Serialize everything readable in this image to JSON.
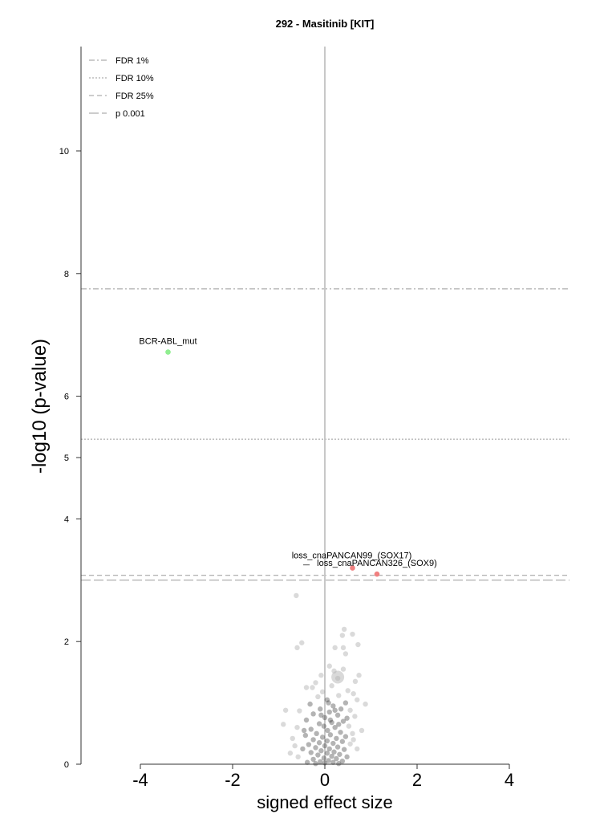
{
  "chart_data": {
    "type": "scatter",
    "title": "292 - Masitinib [KIT]",
    "xlabel": "signed effect size",
    "ylabel": "-log10 (p-value)",
    "xlim": [
      -5.3,
      5.3
    ],
    "ylim": [
      0,
      11.7
    ],
    "x_ticks": [
      -4,
      -2,
      0,
      2,
      4
    ],
    "x_tick_labels": [
      "-4",
      "-2",
      "0",
      "2",
      "4"
    ],
    "y_ticks": [
      0,
      2,
      4,
      5,
      6,
      8,
      10
    ],
    "y_tick_labels": [
      "0",
      "2",
      "4",
      "5",
      "6",
      "8",
      "10"
    ],
    "thresholds": [
      {
        "name": "FDR 1%",
        "y": 7.75,
        "dash": "dashdot",
        "color": "#9a9a9a"
      },
      {
        "name": "FDR 10%",
        "y": 5.3,
        "dash": "dotted",
        "color": "#9a9a9a"
      },
      {
        "name": "FDR 25%",
        "y": 3.08,
        "dash": "dashed",
        "color": "#9a9a9a"
      },
      {
        "name": "p 0.001",
        "y": 3.0,
        "dash": "longdash",
        "color": "#9a9a9a"
      }
    ],
    "legend_position": "top-left",
    "grid": false,
    "highlighted": [
      {
        "label": "BCR-ABL_mut",
        "x": -3.4,
        "y": 6.72,
        "color": "#90ee90"
      },
      {
        "label": "loss_cnaPANCAN99_(SOX17)",
        "x": 0.6,
        "y": 3.2,
        "color": "#f08080"
      },
      {
        "label": "loss_cnaPANCAN326_(SOX9)",
        "x": 1.13,
        "y": 3.1,
        "color": "#f08080"
      }
    ],
    "background_points": [
      {
        "x": -0.62,
        "y": 2.75
      },
      {
        "x": 0.42,
        "y": 2.2
      },
      {
        "x": 0.6,
        "y": 2.12
      },
      {
        "x": 0.38,
        "y": 2.1
      },
      {
        "x": -0.5,
        "y": 1.98
      },
      {
        "x": -0.6,
        "y": 1.9
      },
      {
        "x": 0.22,
        "y": 1.9
      },
      {
        "x": 0.4,
        "y": 1.9
      },
      {
        "x": 0.72,
        "y": 1.95
      },
      {
        "x": 0.45,
        "y": 1.8
      },
      {
        "x": 0.1,
        "y": 1.6
      },
      {
        "x": 0.2,
        "y": 1.52
      },
      {
        "x": 0.4,
        "y": 1.55
      },
      {
        "x": -0.08,
        "y": 1.45
      },
      {
        "x": 0.28,
        "y": 1.4
      },
      {
        "x": 0.74,
        "y": 1.45
      },
      {
        "x": 0.66,
        "y": 1.35
      },
      {
        "x": -0.2,
        "y": 1.33
      },
      {
        "x": -0.4,
        "y": 1.25
      },
      {
        "x": -0.27,
        "y": 1.25
      },
      {
        "x": 0.15,
        "y": 1.28
      },
      {
        "x": 0.5,
        "y": 1.2
      },
      {
        "x": -0.05,
        "y": 1.18
      },
      {
        "x": 0.62,
        "y": 1.15
      },
      {
        "x": 0.3,
        "y": 1.12
      },
      {
        "x": -0.15,
        "y": 1.1
      },
      {
        "x": 0.05,
        "y": 1.05
      },
      {
        "x": 0.7,
        "y": 1.05
      },
      {
        "x": 0.45,
        "y": 1.0
      },
      {
        "x": 0.88,
        "y": 0.98
      },
      {
        "x": -0.32,
        "y": 0.98
      },
      {
        "x": 0.18,
        "y": 0.95
      },
      {
        "x": -0.1,
        "y": 0.9
      },
      {
        "x": 0.35,
        "y": 0.9
      },
      {
        "x": 0.55,
        "y": 0.88
      },
      {
        "x": -0.85,
        "y": 0.88
      },
      {
        "x": -0.55,
        "y": 0.87
      },
      {
        "x": 0.1,
        "y": 0.85
      },
      {
        "x": -0.25,
        "y": 0.82
      },
      {
        "x": 0.28,
        "y": 0.8
      },
      {
        "x": 0.65,
        "y": 0.78
      },
      {
        "x": 0.0,
        "y": 0.76
      },
      {
        "x": -0.4,
        "y": 0.72
      },
      {
        "x": 0.4,
        "y": 0.7
      },
      {
        "x": 0.15,
        "y": 0.68
      },
      {
        "x": -0.12,
        "y": 0.66
      },
      {
        "x": 0.52,
        "y": 0.62
      },
      {
        "x": -0.6,
        "y": 0.6
      },
      {
        "x": 0.22,
        "y": 0.6
      },
      {
        "x": -0.3,
        "y": 0.57
      },
      {
        "x": 0.06,
        "y": 0.55
      },
      {
        "x": 0.34,
        "y": 0.52
      },
      {
        "x": -0.18,
        "y": 0.5
      },
      {
        "x": 0.6,
        "y": 0.5
      },
      {
        "x": 0.12,
        "y": 0.48
      },
      {
        "x": -0.42,
        "y": 0.47
      },
      {
        "x": 0.45,
        "y": 0.45
      },
      {
        "x": -0.05,
        "y": 0.44
      },
      {
        "x": 0.25,
        "y": 0.42
      },
      {
        "x": -0.7,
        "y": 0.42
      },
      {
        "x": -0.25,
        "y": 0.4
      },
      {
        "x": 0.05,
        "y": 0.38
      },
      {
        "x": 0.38,
        "y": 0.37
      },
      {
        "x": -0.12,
        "y": 0.35
      },
      {
        "x": 0.18,
        "y": 0.34
      },
      {
        "x": 0.55,
        "y": 0.33
      },
      {
        "x": -0.35,
        "y": 0.32
      },
      {
        "x": 0.0,
        "y": 0.3
      },
      {
        "x": 0.28,
        "y": 0.28
      },
      {
        "x": -0.2,
        "y": 0.27
      },
      {
        "x": 0.1,
        "y": 0.25
      },
      {
        "x": -0.48,
        "y": 0.25
      },
      {
        "x": 0.42,
        "y": 0.24
      },
      {
        "x": -0.08,
        "y": 0.22
      },
      {
        "x": 0.2,
        "y": 0.2
      },
      {
        "x": -0.3,
        "y": 0.19
      },
      {
        "x": 0.05,
        "y": 0.18
      },
      {
        "x": 0.32,
        "y": 0.16
      },
      {
        "x": -0.15,
        "y": 0.15
      },
      {
        "x": 0.15,
        "y": 0.13
      },
      {
        "x": -0.58,
        "y": 0.12
      },
      {
        "x": 0.48,
        "y": 0.12
      },
      {
        "x": -0.02,
        "y": 0.1
      },
      {
        "x": 0.25,
        "y": 0.09
      },
      {
        "x": -0.25,
        "y": 0.08
      },
      {
        "x": 0.08,
        "y": 0.06
      },
      {
        "x": 0.38,
        "y": 0.05
      },
      {
        "x": -0.1,
        "y": 0.04
      },
      {
        "x": 0.18,
        "y": 0.03
      },
      {
        "x": -0.38,
        "y": 0.03
      },
      {
        "x": 0.0,
        "y": 0.02
      },
      {
        "x": 0.3,
        "y": 0.01
      },
      {
        "x": -0.2,
        "y": 0.01
      },
      {
        "x": 0.12,
        "y": 0.72
      },
      {
        "x": -0.02,
        "y": 0.62
      },
      {
        "x": 0.3,
        "y": 0.65
      },
      {
        "x": -0.08,
        "y": 0.8
      },
      {
        "x": 0.22,
        "y": 0.88
      },
      {
        "x": 0.08,
        "y": 1.0
      },
      {
        "x": -0.45,
        "y": 0.55
      },
      {
        "x": 0.48,
        "y": 0.75
      },
      {
        "x": 0.62,
        "y": 0.4
      },
      {
        "x": -0.65,
        "y": 0.3
      },
      {
        "x": 0.7,
        "y": 0.25
      },
      {
        "x": -0.75,
        "y": 0.18
      },
      {
        "x": 0.8,
        "y": 0.55
      },
      {
        "x": -0.9,
        "y": 0.65
      }
    ],
    "large_points": [
      {
        "x": 0.28,
        "y": 1.42
      }
    ]
  },
  "legend_entries": [
    "FDR 1%",
    "FDR 10%",
    "FDR 25%",
    "p 0.001"
  ]
}
